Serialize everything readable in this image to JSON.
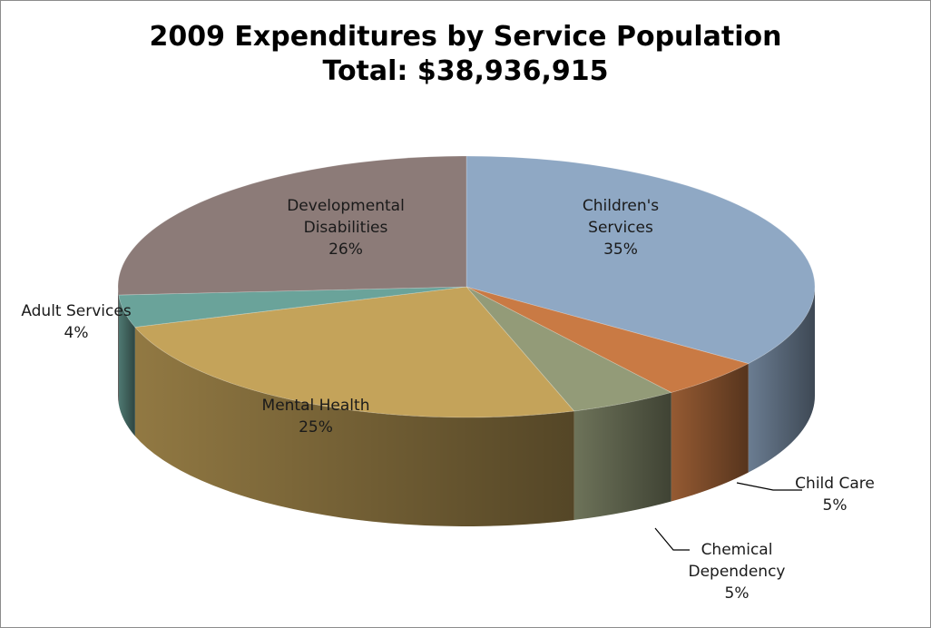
{
  "chart_data": {
    "type": "pie",
    "style": "3d-exploded-none",
    "title": "2009 Expenditures by Service Population",
    "subtitle": "Total:  $38,936,915",
    "slices": [
      {
        "label_lines": [
          "Children's",
          "Services"
        ],
        "pct_label": "35%",
        "value": 35,
        "color": "#8fa8c4"
      },
      {
        "label_lines": [
          "Child Care"
        ],
        "pct_label": "5%",
        "value": 5,
        "color": "#c97a44"
      },
      {
        "label_lines": [
          "Chemical",
          "Dependency"
        ],
        "pct_label": "5%",
        "value": 5,
        "color": "#939b78"
      },
      {
        "label_lines": [
          "Mental Health"
        ],
        "pct_label": "25%",
        "value": 25,
        "color": "#c4a35a"
      },
      {
        "label_lines": [
          "Adult Services"
        ],
        "pct_label": "4%",
        "value": 4,
        "color": "#6aa39a"
      },
      {
        "label_lines": [
          "Developmental",
          "Disabilities"
        ],
        "pct_label": "26%",
        "value": 26,
        "color": "#8c7b78"
      }
    ],
    "legend": "none"
  }
}
